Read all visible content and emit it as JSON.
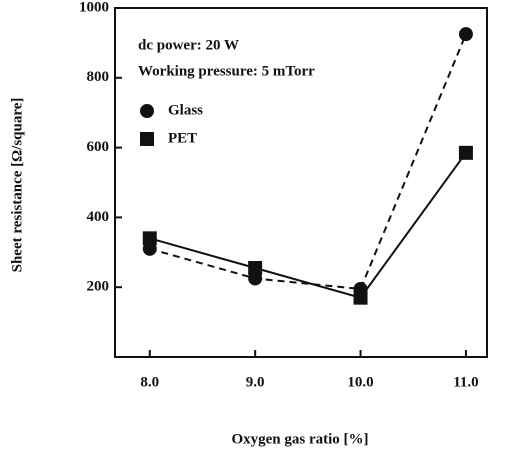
{
  "chart_data": {
    "type": "line",
    "annotations": [
      "dc power: 20 W",
      "Working pressure: 5 mTorr"
    ],
    "x_label": "Oxygen gas ratio [%]",
    "y_label": "Sheet resistance [Ω/square]",
    "x": [
      8,
      9,
      10,
      11
    ],
    "series": [
      {
        "name": "Glass",
        "color": "#111111",
        "marker": "circle",
        "line_style": "dashed",
        "values": [
          310,
          225,
          195,
          925
        ]
      },
      {
        "name": "PET",
        "color": "#111111",
        "marker": "square",
        "line_style": "solid",
        "values": [
          340,
          255,
          170,
          585
        ]
      }
    ],
    "xlim": [
      7.67,
      11.2
    ],
    "xticks": [
      {
        "value": 8,
        "label": "8.0"
      },
      {
        "value": 9,
        "label": "9.0"
      },
      {
        "value": 10,
        "label": "10.0"
      },
      {
        "value": 11,
        "label": "11.0"
      }
    ],
    "ylim": [
      0,
      1000
    ],
    "yticks": [
      200,
      400,
      600,
      800,
      1000
    ],
    "legend": "upper left"
  }
}
